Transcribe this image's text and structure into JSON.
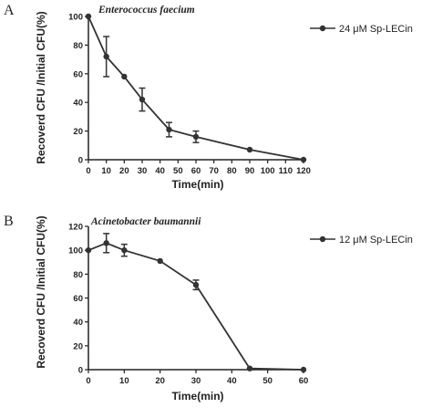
{
  "chart_data": [
    {
      "panel": "A",
      "type": "line",
      "title": "Enterococcus faecium",
      "xlabel": "Time(min)",
      "ylabel": "Recoverd CFU /Initial CFU(%)",
      "x_ticks": [
        "0",
        "10",
        "20",
        "30",
        "40",
        "50",
        "60",
        "70",
        "80",
        "90",
        "100",
        "110",
        "120"
      ],
      "y_ticks": [
        "0",
        "20",
        "40",
        "60",
        "80",
        "100"
      ],
      "xlim": [
        0,
        120
      ],
      "ylim": [
        0,
        100
      ],
      "series": [
        {
          "name": "24 μM Sp-LECin",
          "x": [
            0,
            10,
            20,
            30,
            45,
            60,
            90,
            120
          ],
          "y": [
            100,
            72,
            58,
            42,
            21,
            16,
            7,
            0
          ],
          "error": [
            0,
            14,
            0,
            8,
            5,
            4,
            0,
            0
          ]
        }
      ],
      "legend": "top-right"
    },
    {
      "panel": "B",
      "type": "line",
      "title": "Acinetobacter baumannii",
      "xlabel": "Time(min)",
      "ylabel": "Recoverd CFU /Initial CFU(%)",
      "x_ticks": [
        "0",
        "10",
        "20",
        "30",
        "40",
        "50",
        "60"
      ],
      "y_ticks": [
        "0",
        "20",
        "40",
        "60",
        "80",
        "100",
        "120"
      ],
      "xlim": [
        0,
        60
      ],
      "ylim": [
        0,
        120
      ],
      "series": [
        {
          "name": "12 μM Sp-LECin",
          "x": [
            0,
            5,
            10,
            20,
            30,
            45,
            60
          ],
          "y": [
            100,
            106,
            100,
            91,
            71,
            1,
            0
          ],
          "error": [
            0,
            8,
            5,
            0,
            4,
            0,
            0
          ]
        }
      ],
      "legend": "top-right"
    }
  ],
  "style": {
    "line_color": "#333333",
    "marker_color": "#333333"
  }
}
